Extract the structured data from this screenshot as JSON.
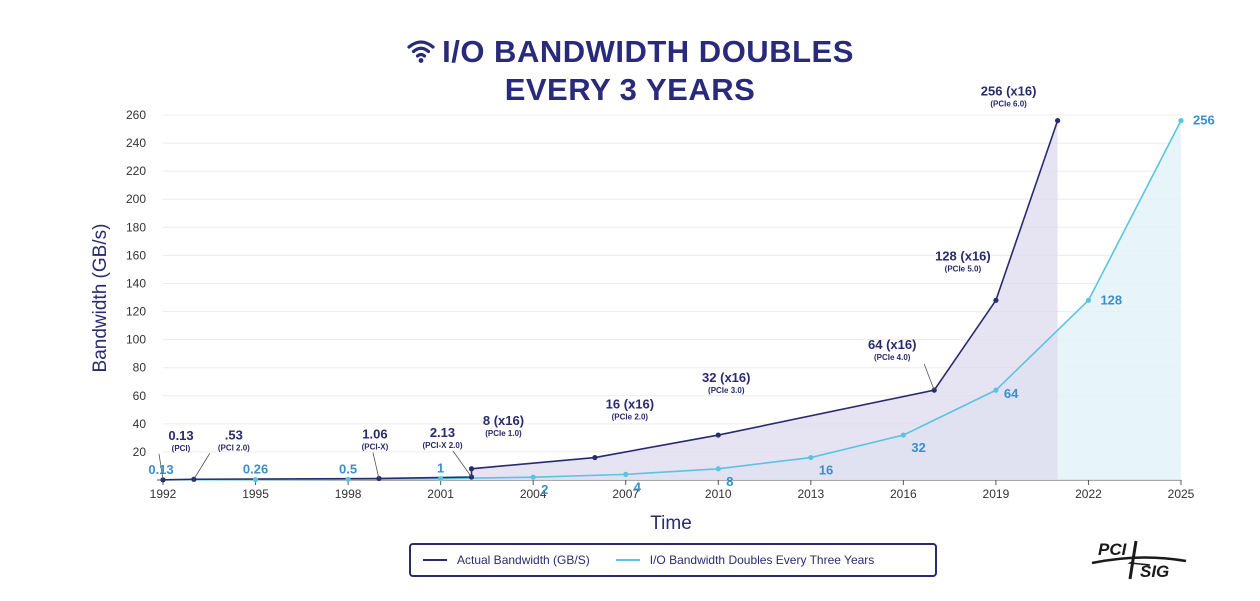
{
  "title": {
    "line1": "I/O BANDWIDTH DOUBLES",
    "line2": "EVERY 3 YEARS",
    "icon": "wifi-icon"
  },
  "colors": {
    "actual": "#2a2a6e",
    "doubling": "#5bc4e0",
    "title": "#2a2a7a",
    "doubling_label": "#3b8fc9",
    "actual_fill": "#ddd9ee",
    "doubling_fill": "#e3f3fa"
  },
  "legend": {
    "actual_label": "Actual Bandwidth (GB/S)",
    "doubling_label": "I/O Bandwidth Doubles Every Three Years"
  },
  "logo": {
    "text_top": "PCI",
    "text_bottom": "SIG"
  },
  "chart_data": {
    "type": "line",
    "xlabel": "Time",
    "ylabel": "Bandwidth (GB/s)",
    "x_ticks": [
      "1992",
      "1995",
      "1998",
      "2001",
      "2004",
      "2007",
      "2010",
      "2013",
      "2016",
      "2019",
      "2022",
      "2025"
    ],
    "xlim": [
      1992,
      2025
    ],
    "ylim": [
      0,
      260
    ],
    "y_ticks": [
      20,
      40,
      60,
      80,
      100,
      120,
      140,
      160,
      180,
      200,
      220,
      240,
      260
    ],
    "grid": true,
    "legend_position": "bottom-center",
    "series": [
      {
        "name": "Actual Bandwidth (GB/S)",
        "points": [
          {
            "x": 1992,
            "y": 0.13,
            "label": "0.13",
            "sub": "(PCI)"
          },
          {
            "x": 1993,
            "y": 0.53,
            "label": ".53",
            "sub": "(PCI 2.0)"
          },
          {
            "x": 1999,
            "y": 1.06,
            "label": "1.06",
            "sub": "(PCI-X)"
          },
          {
            "x": 2002,
            "y": 2.13,
            "label": "2.13",
            "sub": "(PCI-X 2.0)"
          },
          {
            "x": 2002,
            "y": 8,
            "label": "8 (x16)",
            "sub": "(PCIe 1.0)"
          },
          {
            "x": 2006,
            "y": 16,
            "label": "16 (x16)",
            "sub": "(PCIe 2.0)"
          },
          {
            "x": 2010,
            "y": 32,
            "label": "32 (x16)",
            "sub": "(PCIe 3.0)"
          },
          {
            "x": 2017,
            "y": 64,
            "label": "64 (x16)",
            "sub": "(PCIe 4.0)"
          },
          {
            "x": 2019,
            "y": 128,
            "label": "128 (x16)",
            "sub": "(PCIe 5.0)"
          },
          {
            "x": 2021,
            "y": 256,
            "label": "256 (x16)",
            "sub": "(PCIe 6.0)"
          }
        ]
      },
      {
        "name": "I/O Bandwidth Doubles Every Three Years",
        "points": [
          {
            "x": 1992,
            "y": 0.13,
            "label": "0.13"
          },
          {
            "x": 1995,
            "y": 0.26,
            "label": "0.26"
          },
          {
            "x": 1998,
            "y": 0.5,
            "label": "0.5"
          },
          {
            "x": 2001,
            "y": 1,
            "label": "1"
          },
          {
            "x": 2004,
            "y": 2,
            "label": "2"
          },
          {
            "x": 2007,
            "y": 4,
            "label": "4"
          },
          {
            "x": 2010,
            "y": 8,
            "label": "8"
          },
          {
            "x": 2013,
            "y": 16,
            "label": "16"
          },
          {
            "x": 2016,
            "y": 32,
            "label": "32"
          },
          {
            "x": 2019,
            "y": 64,
            "label": "64"
          },
          {
            "x": 2022,
            "y": 128,
            "label": "128"
          },
          {
            "x": 2025,
            "y": 256,
            "label": "256"
          }
        ]
      }
    ]
  }
}
